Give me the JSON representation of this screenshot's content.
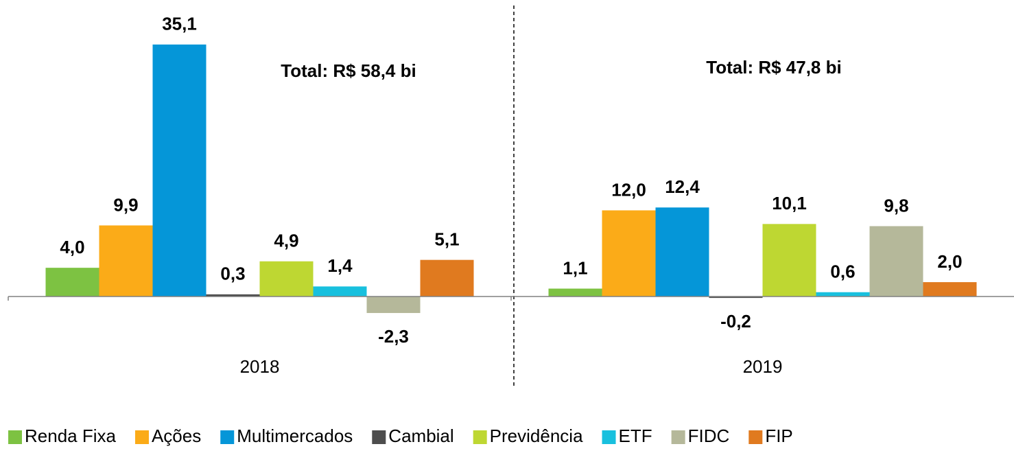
{
  "chart_data": {
    "type": "bar",
    "categories": [
      "2018",
      "2019"
    ],
    "series": [
      {
        "name": "Renda Fixa",
        "color": "#7dc242",
        "values": [
          4.0,
          1.1
        ],
        "value_labels": [
          "4,0",
          "1,1"
        ]
      },
      {
        "name": "Ações",
        "color": "#fbab18",
        "values": [
          9.9,
          12.0
        ],
        "value_labels": [
          "9,9",
          "12,0"
        ]
      },
      {
        "name": "Multimercados",
        "color": "#0596d8",
        "values": [
          35.1,
          12.4
        ],
        "value_labels": [
          "35,1",
          "12,4"
        ]
      },
      {
        "name": "Cambial",
        "color": "#4d4d4d",
        "values": [
          0.3,
          -0.2
        ],
        "value_labels": [
          "0,3",
          "-0,2"
        ]
      },
      {
        "name": "Previdência",
        "color": "#bed732",
        "values": [
          4.9,
          10.1
        ],
        "value_labels": [
          "4,9",
          "10,1"
        ]
      },
      {
        "name": "ETF",
        "color": "#18c0de",
        "values": [
          1.4,
          0.6
        ],
        "value_labels": [
          "1,4",
          "0,6"
        ]
      },
      {
        "name": "FIDC",
        "color": "#b5b89a",
        "values": [
          -2.3,
          9.8
        ],
        "value_labels": [
          "-2,3",
          "9,8"
        ]
      },
      {
        "name": "FIP",
        "color": "#e07a1f",
        "values": [
          5.1,
          2.0
        ],
        "value_labels": [
          "5,1",
          "2,0"
        ]
      }
    ],
    "annotations": [
      "Total: R$ 58,4 bi",
      "Total: R$ 47,8 bi"
    ],
    "ylim": [
      -3.5,
      40
    ],
    "legend": "bottom"
  }
}
